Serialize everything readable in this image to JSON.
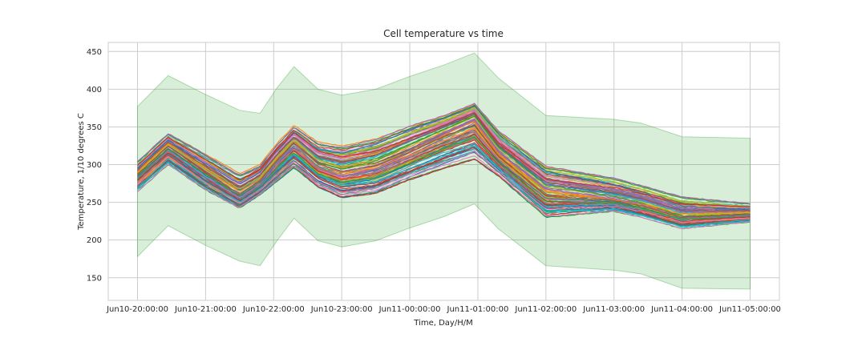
{
  "chart_data": {
    "type": "line",
    "title": "Cell temperature vs time",
    "xlabel": "Time, Day/H/M",
    "ylabel": "Temperature, 1/10 degrees C",
    "x_ticks": [
      "Jun10-20:00:00",
      "Jun10-21:00:00",
      "Jun10-22:00:00",
      "Jun10-23:00:00",
      "Jun11-00:00:00",
      "Jun11-01:00:00",
      "Jun11-02:00:00",
      "Jun11-03:00:00",
      "Jun11-04:00:00",
      "Jun11-05:00:00"
    ],
    "x_hours": [
      0,
      1,
      2,
      3,
      4,
      5,
      6,
      7,
      8,
      9
    ],
    "y_ticks": [
      150,
      200,
      250,
      300,
      350,
      400,
      450
    ],
    "ylim": [
      120,
      462
    ],
    "xlim": [
      -0.43,
      9.43
    ],
    "grid": true,
    "band": {
      "color": "#2ca02c",
      "x": [
        0,
        0.45,
        1.0,
        1.5,
        1.8,
        2.05,
        2.3,
        2.65,
        3.0,
        3.5,
        4.0,
        4.5,
        4.95,
        5.3,
        6.0,
        7.0,
        7.4,
        8.0,
        9.0
      ],
      "upper": [
        377,
        418,
        393,
        372,
        368,
        402,
        430,
        400,
        392,
        400,
        417,
        432,
        448,
        415,
        365,
        360,
        355,
        337,
        335
      ],
      "lower": [
        178,
        219,
        193,
        172,
        166,
        199,
        229,
        199,
        191,
        199,
        216,
        231,
        248,
        215,
        166,
        160,
        155,
        136,
        135
      ]
    },
    "series_colors": [
      "#1f77b4",
      "#ff7f0e",
      "#2ca02c",
      "#d62728",
      "#9467bd",
      "#8c564b",
      "#e377c2",
      "#7f7f7f",
      "#bcbd22",
      "#17becf"
    ],
    "base_curve": {
      "x": [
        0,
        0.45,
        1.0,
        1.5,
        1.8,
        2.05,
        2.3,
        2.65,
        3.0,
        3.5,
        4.0,
        4.5,
        4.95,
        5.3,
        6.0,
        7.0,
        7.4,
        8.0,
        9.0
      ],
      "y": [
        288,
        325,
        290,
        260,
        278,
        305,
        328,
        300,
        290,
        298,
        318,
        340,
        358,
        315,
        265,
        255,
        248,
        232,
        235
      ]
    },
    "envelope": {
      "x": [
        0,
        0.45,
        1.0,
        1.5,
        1.8,
        2.05,
        2.3,
        2.65,
        3.0,
        3.5,
        4.0,
        4.5,
        4.95,
        5.3,
        6.0,
        7.0,
        7.4,
        8.0,
        9.0
      ],
      "upper": [
        304,
        341,
        314,
        288,
        300,
        328,
        352,
        330,
        325,
        335,
        352,
        365,
        381,
        345,
        298,
        282,
        272,
        257,
        248
      ],
      "lower": [
        264,
        300,
        266,
        242,
        260,
        278,
        296,
        270,
        256,
        262,
        280,
        295,
        307,
        285,
        230,
        238,
        230,
        215,
        224
      ]
    },
    "series_count": 96
  }
}
